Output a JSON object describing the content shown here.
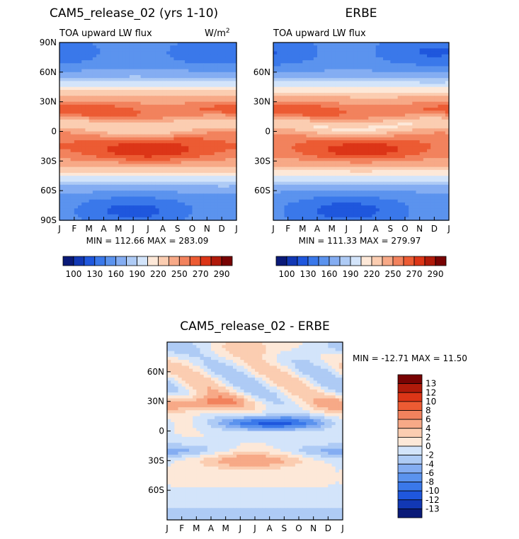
{
  "chart_data": [
    {
      "type": "heatmap",
      "id": "model",
      "title": "CAM5_release_02 (yrs 1-10)",
      "left_string": "TOA upward LW flux",
      "right_string": "W/m",
      "right_superscript": "2",
      "x_ticks": [
        "J",
        "F",
        "M",
        "A",
        "M",
        "J",
        "J",
        "A",
        "S",
        "O",
        "N",
        "D",
        "J"
      ],
      "y_ticks": [
        "90N",
        "60N",
        "30N",
        "0",
        "30S",
        "60S",
        "90S"
      ],
      "stats": "MIN = 112.66  MAX = 283.09",
      "min": 112.66,
      "max": 283.09,
      "colorbar_labels": [
        "100",
        "130",
        "160",
        "190",
        "220",
        "250",
        "270",
        "290"
      ],
      "levels": [
        100,
        115,
        130,
        145,
        160,
        175,
        190,
        205,
        220,
        235,
        250,
        260,
        270,
        280,
        290
      ]
    },
    {
      "type": "heatmap",
      "id": "obs",
      "title": "ERBE",
      "left_string": "TOA upward LW flux",
      "x_ticks": [
        "J",
        "F",
        "M",
        "A",
        "M",
        "J",
        "J",
        "A",
        "S",
        "O",
        "N",
        "D",
        "J"
      ],
      "y_ticks": [
        "60N",
        "30N",
        "0",
        "30S",
        "60S"
      ],
      "stats": "MIN = 111.33  MAX = 279.97",
      "min": 111.33,
      "max": 279.97,
      "colorbar_labels": [
        "100",
        "130",
        "160",
        "190",
        "220",
        "250",
        "270",
        "290"
      ],
      "levels": [
        100,
        115,
        130,
        145,
        160,
        175,
        190,
        205,
        220,
        235,
        250,
        260,
        270,
        280,
        290
      ]
    },
    {
      "type": "heatmap",
      "id": "diff",
      "title": "CAM5_release_02 - ERBE",
      "x_ticks": [
        "J",
        "F",
        "M",
        "A",
        "M",
        "J",
        "J",
        "A",
        "S",
        "O",
        "N",
        "D",
        "J"
      ],
      "y_ticks": [
        "60N",
        "30N",
        "0",
        "30S",
        "60S"
      ],
      "stats": "MIN = -12.71  MAX =   11.50",
      "min": -12.71,
      "max": 11.5,
      "colorbar_labels": [
        "13",
        "12",
        "10",
        "8",
        "6",
        "4",
        "2",
        "0",
        "-2",
        "-4",
        "-6",
        "-8",
        "-10",
        "-12",
        "-13"
      ],
      "levels": [
        -13,
        -12,
        -10,
        -8,
        -6,
        -4,
        -2,
        0,
        2,
        4,
        6,
        8,
        10,
        12,
        13
      ]
    }
  ],
  "colors": {
    "palette": [
      "#0a1a78",
      "#1238b4",
      "#1f57dd",
      "#3a78ea",
      "#5b93ee",
      "#84adf2",
      "#aecbf5",
      "#d3e4fa",
      "#fde8d8",
      "#fbcdb1",
      "#f7a987",
      "#f2825d",
      "#ec5b33",
      "#dc3517",
      "#b01a0a",
      "#780303"
    ]
  }
}
